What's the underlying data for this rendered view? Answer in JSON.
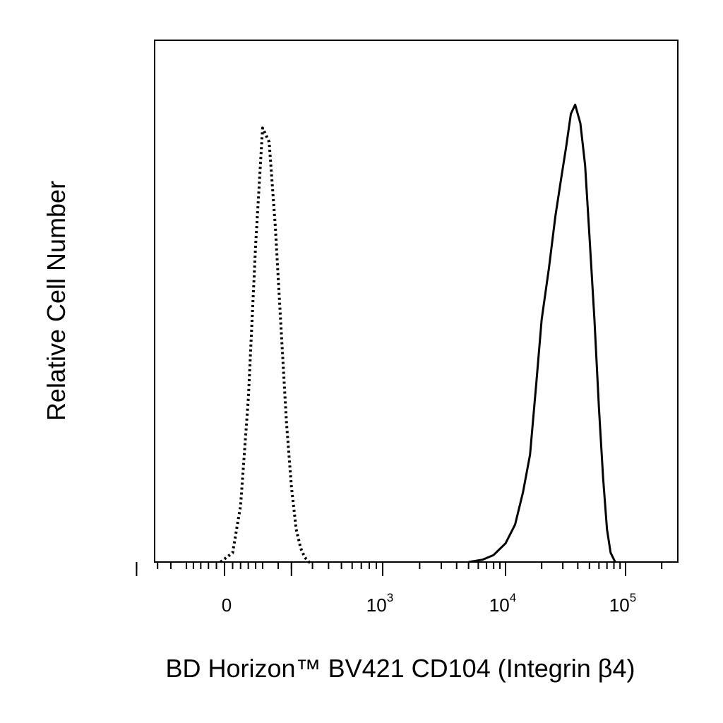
{
  "chart_data": {
    "type": "area",
    "title": "",
    "xlabel": "BD Horizon™ BV421 CD104 (Integrin β4)",
    "ylabel": "Relative Cell Number",
    "x_scale": "biexponential",
    "xlim": [
      -300,
      250000
    ],
    "ylim": [
      0,
      100
    ],
    "grid": false,
    "legend": "none",
    "x_tick_labels": [
      {
        "value": 0,
        "base": "0",
        "exp": ""
      },
      {
        "value": 1000,
        "base": "10",
        "exp": "3"
      },
      {
        "value": 10000,
        "base": "10",
        "exp": "4"
      },
      {
        "value": 100000,
        "base": "10",
        "exp": "5"
      }
    ],
    "series": [
      {
        "style": "dotted",
        "color": "#000000",
        "x": [
          -10,
          20,
          40,
          60,
          80,
          100,
          120,
          140,
          160,
          180,
          200,
          220,
          240,
          260,
          280,
          300
        ],
        "y": [
          0,
          2,
          12,
          35,
          68,
          93,
          90,
          72,
          50,
          30,
          16,
          7,
          3,
          1,
          0,
          0
        ]
      },
      {
        "style": "solid",
        "color": "#000000",
        "x": [
          5000,
          6500,
          8000,
          10000,
          12000,
          14000,
          16000,
          18000,
          20000,
          23000,
          26000,
          29000,
          32000,
          35000,
          38000,
          42000,
          46000,
          50000,
          55000,
          60000,
          65000,
          70000,
          75000,
          82000
        ],
        "y": [
          0,
          0.5,
          1.5,
          4,
          8,
          15,
          23,
          38,
          52,
          63,
          74,
          82,
          89,
          96,
          98,
          94,
          85,
          70,
          52,
          33,
          18,
          7,
          2,
          0
        ]
      }
    ]
  }
}
